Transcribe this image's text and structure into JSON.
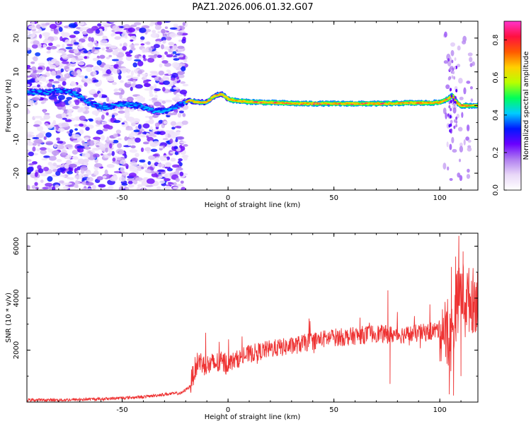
{
  "title": "PAZ1.2026.006.01.32.G07",
  "chart_data": [
    {
      "type": "heatmap",
      "name": "spectrogram",
      "xlabel": "Height of straight line (km)",
      "ylabel": "Frequency (Hz)",
      "xlim": [
        -95,
        118
      ],
      "ylim": [
        -25,
        25
      ],
      "xticks": [
        -50,
        0,
        50,
        100
      ],
      "yticks": [
        -20,
        -10,
        0,
        10,
        20
      ],
      "colorbar": {
        "label": "Normalized spectral amplitude",
        "range": [
          0.0,
          0.9
        ],
        "ticks": [
          0.0,
          0.2,
          0.4,
          0.6,
          0.8
        ],
        "colormap": [
          "#ffffff",
          "#e9d8f8",
          "#b07ef0",
          "#6a00ff",
          "#0018ff",
          "#00ccff",
          "#00ff5a",
          "#b8ff00",
          "#ffd000",
          "#ff5a00",
          "#ff1040",
          "#ff33cc"
        ]
      },
      "trace": {
        "description": "frequency ridge vs height",
        "x": [
          -95,
          -85,
          -78,
          -72,
          -65,
          -58,
          -50,
          -42,
          -35,
          -28,
          -22,
          -18,
          -14,
          -10,
          -6,
          -3,
          0,
          3,
          8,
          15,
          25,
          35,
          45,
          55,
          65,
          75,
          85,
          95,
          100,
          104,
          106,
          108,
          110,
          114,
          118
        ],
        "y": [
          4.0,
          4.0,
          4.5,
          3.5,
          0.5,
          -0.5,
          0.5,
          0.0,
          -1.5,
          -1.5,
          0.5,
          1.5,
          1.0,
          1.0,
          3.0,
          3.5,
          2.0,
          1.5,
          1.2,
          1.0,
          0.8,
          0.6,
          0.6,
          0.6,
          0.6,
          0.6,
          0.8,
          0.8,
          1.0,
          2.0,
          3.0,
          1.0,
          0.0,
          0.0,
          0.0
        ]
      },
      "noise_region": {
        "x_from": -95,
        "x_to": -20
      }
    },
    {
      "type": "line",
      "name": "snr",
      "xlabel": "Height of straight line (km)",
      "ylabel": "SNR (10 * v/v)",
      "xlim": [
        -95,
        118
      ],
      "ylim": [
        0,
        6500
      ],
      "xticks": [
        -50,
        0,
        50,
        100
      ],
      "yticks": [
        2000,
        4000,
        6000
      ],
      "color": "#ee3333",
      "series": [
        {
          "name": "SNR envelope",
          "x": [
            -95,
            -80,
            -60,
            -40,
            -30,
            -22,
            -18,
            -16,
            -14,
            -10,
            -5,
            0,
            10,
            20,
            30,
            40,
            50,
            55,
            60,
            65,
            70,
            75,
            80,
            85,
            90,
            95,
            100,
            102,
            104,
            106,
            108,
            110,
            112,
            115,
            118
          ],
          "y": [
            80,
            80,
            120,
            200,
            300,
            350,
            600,
            1200,
            1600,
            1400,
            1500,
            1500,
            1850,
            2050,
            2150,
            2350,
            2500,
            2500,
            2550,
            2600,
            2650,
            2600,
            2600,
            2600,
            2650,
            2700,
            2800,
            2900,
            2200,
            2600,
            3800,
            4300,
            4000,
            3900,
            4000
          ],
          "spikes": [
            {
              "x": 75.5,
              "y": 4300
            },
            {
              "x": 76.5,
              "y": 700
            },
            {
              "x": 104.5,
              "y": 300
            },
            {
              "x": 105.5,
              "y": 5200
            },
            {
              "x": 106.5,
              "y": 250
            },
            {
              "x": 107.5,
              "y": 5600
            },
            {
              "x": 109,
              "y": 6400
            },
            {
              "x": 110,
              "y": 1000
            },
            {
              "x": 111,
              "y": 5800
            },
            {
              "x": 112,
              "y": 2500
            }
          ]
        }
      ]
    }
  ]
}
